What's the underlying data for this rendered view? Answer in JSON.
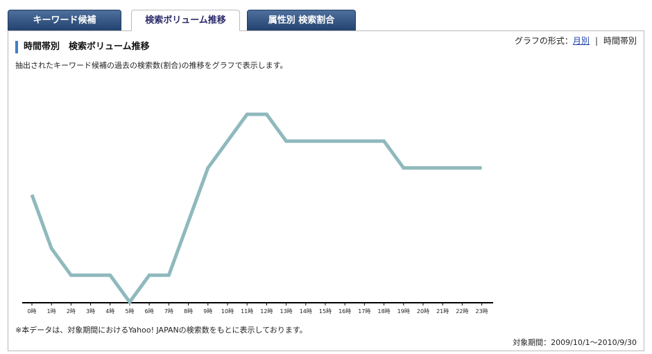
{
  "tabs": [
    {
      "label": "キーワード候補",
      "active": false
    },
    {
      "label": "検索ボリューム推移",
      "active": true
    },
    {
      "label": "属性別 検索割合",
      "active": false
    }
  ],
  "panel": {
    "title": "時間帯別　検索ボリューム推移",
    "format_label": "グラフの形式：",
    "format_monthly": "月別",
    "format_separator": "|",
    "format_hourly": "時間帯別",
    "description": "抽出されたキーワード候補の過去の検索数(割合)の推移をグラフで表示します。",
    "note": "※本データは、対象期間におけるYahoo! JAPANの検索数をもとに表示しております。",
    "period": "対象期間：2009/10/1～2010/9/30"
  },
  "colors": {
    "line": "#8fb9bd",
    "tab_dark": "#2c4c7a",
    "accent": "#3f7fc7"
  },
  "chart_data": {
    "type": "line",
    "categories": [
      "0時",
      "1時",
      "2時",
      "3時",
      "4時",
      "5時",
      "6時",
      "7時",
      "8時",
      "9時",
      "10時",
      "11時",
      "12時",
      "13時",
      "14時",
      "15時",
      "16時",
      "17時",
      "18時",
      "19時",
      "20時",
      "21時",
      "22時",
      "23時"
    ],
    "values": [
      4,
      2,
      1,
      1,
      1,
      0,
      1,
      1,
      3,
      5,
      6,
      7,
      7,
      6,
      6,
      6,
      6,
      6,
      6,
      5,
      5,
      5,
      5,
      5
    ],
    "ylim": [
      0,
      7
    ],
    "grid": false,
    "legend": "none"
  }
}
